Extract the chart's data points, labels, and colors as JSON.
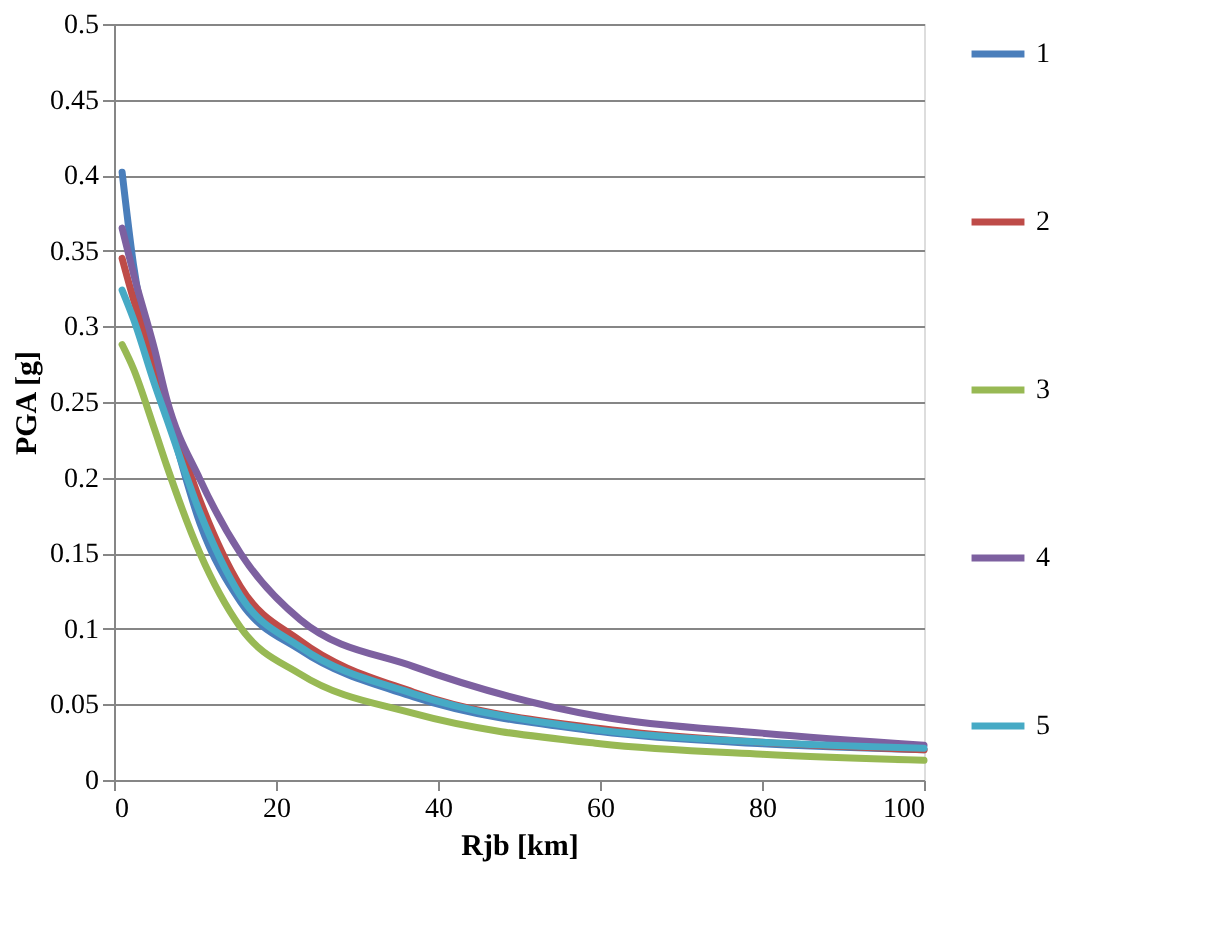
{
  "chart_data": {
    "type": "line",
    "xlabel": "Rjb [km]",
    "ylabel": "PGA [g]",
    "x": [
      1,
      2.4,
      5,
      6.5,
      10.6,
      15.6,
      23,
      37,
      60,
      80,
      100
    ],
    "series": [
      {
        "name": "1",
        "color": "#4a7ebb",
        "values": [
          0.402,
          0.341,
          0.274,
          0.245,
          0.17,
          0.118,
          0.086,
          0.055,
          0.032,
          0.024,
          0.02
        ]
      },
      {
        "name": "2",
        "color": "#be4b48",
        "values": [
          0.345,
          0.318,
          0.275,
          0.25,
          0.185,
          0.128,
          0.092,
          0.058,
          0.034,
          0.025,
          0.02
        ]
      },
      {
        "name": "3",
        "color": "#98b954",
        "values": [
          0.288,
          0.272,
          0.232,
          0.208,
          0.15,
          0.101,
          0.07,
          0.044,
          0.024,
          0.017,
          0.013
        ]
      },
      {
        "name": "4",
        "color": "#7d60a0",
        "values": [
          0.365,
          0.335,
          0.285,
          0.252,
          0.199,
          0.15,
          0.106,
          0.075,
          0.042,
          0.031,
          0.023
        ]
      },
      {
        "name": "5",
        "color": "#46aac5",
        "values": [
          0.324,
          0.305,
          0.262,
          0.239,
          0.177,
          0.122,
          0.088,
          0.057,
          0.033,
          0.025,
          0.021
        ]
      }
    ],
    "xlim": [
      0,
      100
    ],
    "xticks": [
      0,
      20,
      40,
      60,
      80,
      100
    ],
    "ylim": [
      0,
      0.5
    ],
    "yticks": [
      0,
      0.05,
      0.1,
      0.15,
      0.2,
      0.25,
      0.3,
      0.35,
      0.4,
      0.45,
      0.5
    ],
    "grid": "y",
    "legend": "right",
    "marker": "none",
    "line_style": "solid"
  }
}
